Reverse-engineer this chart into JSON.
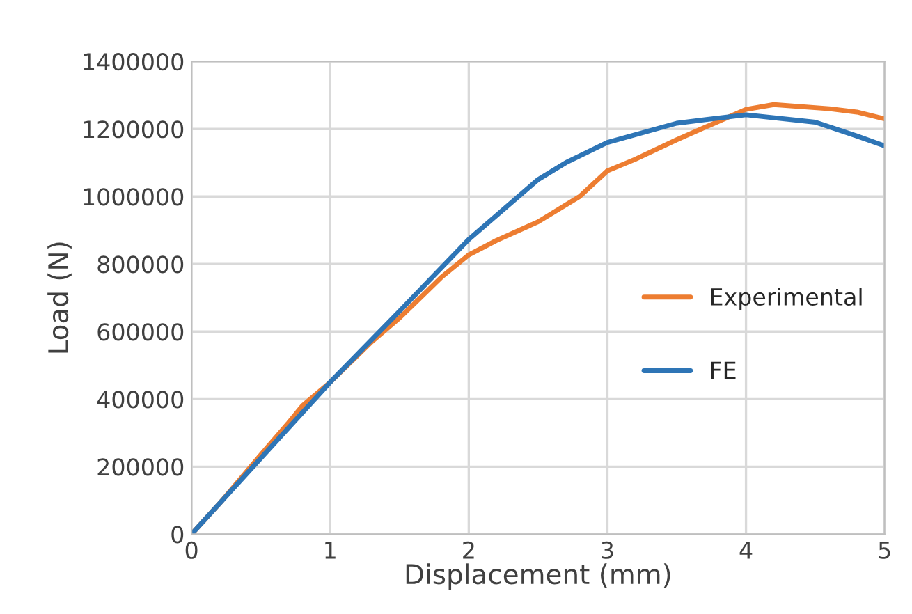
{
  "chart_data": {
    "type": "line",
    "xlabel": "Displacement (mm)",
    "ylabel": "Load (N)",
    "xlim": [
      0,
      5
    ],
    "xticks": [
      0,
      1,
      2,
      3,
      4,
      5
    ],
    "ylim": [
      0,
      1400000
    ],
    "yticks": [
      0,
      200000,
      400000,
      600000,
      800000,
      1000000,
      1200000,
      1400000
    ],
    "grid": true,
    "legend": "right",
    "marker": "none",
    "line_style": "solid",
    "series": [
      {
        "name": "Experimental",
        "color": "#ed7d31",
        "x": [
          0,
          0.2,
          0.5,
          0.7,
          0.8,
          1,
          1.3,
          1.5,
          1.6,
          1.8,
          2,
          2.2,
          2.5,
          2.8,
          3,
          3.2,
          3.5,
          3.8,
          4,
          4.2,
          4.6,
          4.8,
          5
        ],
        "values": [
          0,
          90000,
          235000,
          330000,
          380000,
          450000,
          570000,
          640000,
          680000,
          760000,
          827000,
          870000,
          925000,
          1000000,
          1076000,
          1110000,
          1168000,
          1222000,
          1258000,
          1272000,
          1260000,
          1250000,
          1230000
        ]
      },
      {
        "name": "FE",
        "color": "#2e75b6",
        "x": [
          0,
          0.5,
          1,
          1.5,
          2,
          2.5,
          2.7,
          3,
          3.5,
          4,
          4.5,
          4.8,
          5
        ],
        "values": [
          0,
          225000,
          450000,
          660000,
          873000,
          1050000,
          1100000,
          1160000,
          1217000,
          1242000,
          1220000,
          1179000,
          1150000
        ]
      }
    ]
  }
}
